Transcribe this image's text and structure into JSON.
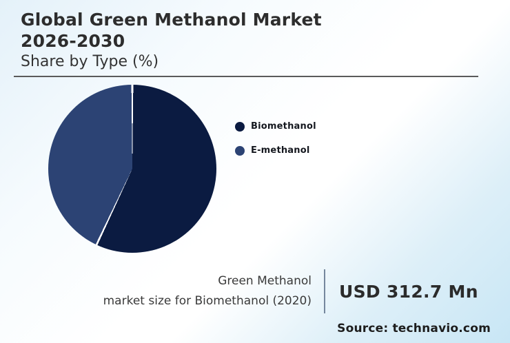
{
  "header": {
    "title_line1": "Global Green Methanol Market",
    "title_line2": "2026-2030",
    "subtitle": "Share by Type (%)"
  },
  "chart_data": {
    "type": "pie",
    "title": "Global Green Methanol Market 2026-2030",
    "subtitle": "Share by Type (%)",
    "labels": [
      "Biomethanol",
      "E-methanol"
    ],
    "values": [
      57,
      43
    ],
    "unit": "%",
    "colors": [
      "#0b1b41",
      "#2c4374"
    ],
    "slice_divider_color": "#ffffff",
    "start_angle_deg": 0,
    "direction": "clockwise",
    "legend_position": "right",
    "data_labels_shown": false
  },
  "callout": {
    "line1": "Green Methanol",
    "line2": "market size for Biomethanol (2020)",
    "value": "USD 312.7 Mn"
  },
  "source": {
    "text": "Source: technavio.com"
  },
  "theme": {
    "background_top_left": "#e4f1f9",
    "background_bottom_right": "#c8e6f5",
    "title_color": "#2d2d2d",
    "rule_color": "#5a5a5a",
    "callout_divider_color": "#75879d"
  }
}
